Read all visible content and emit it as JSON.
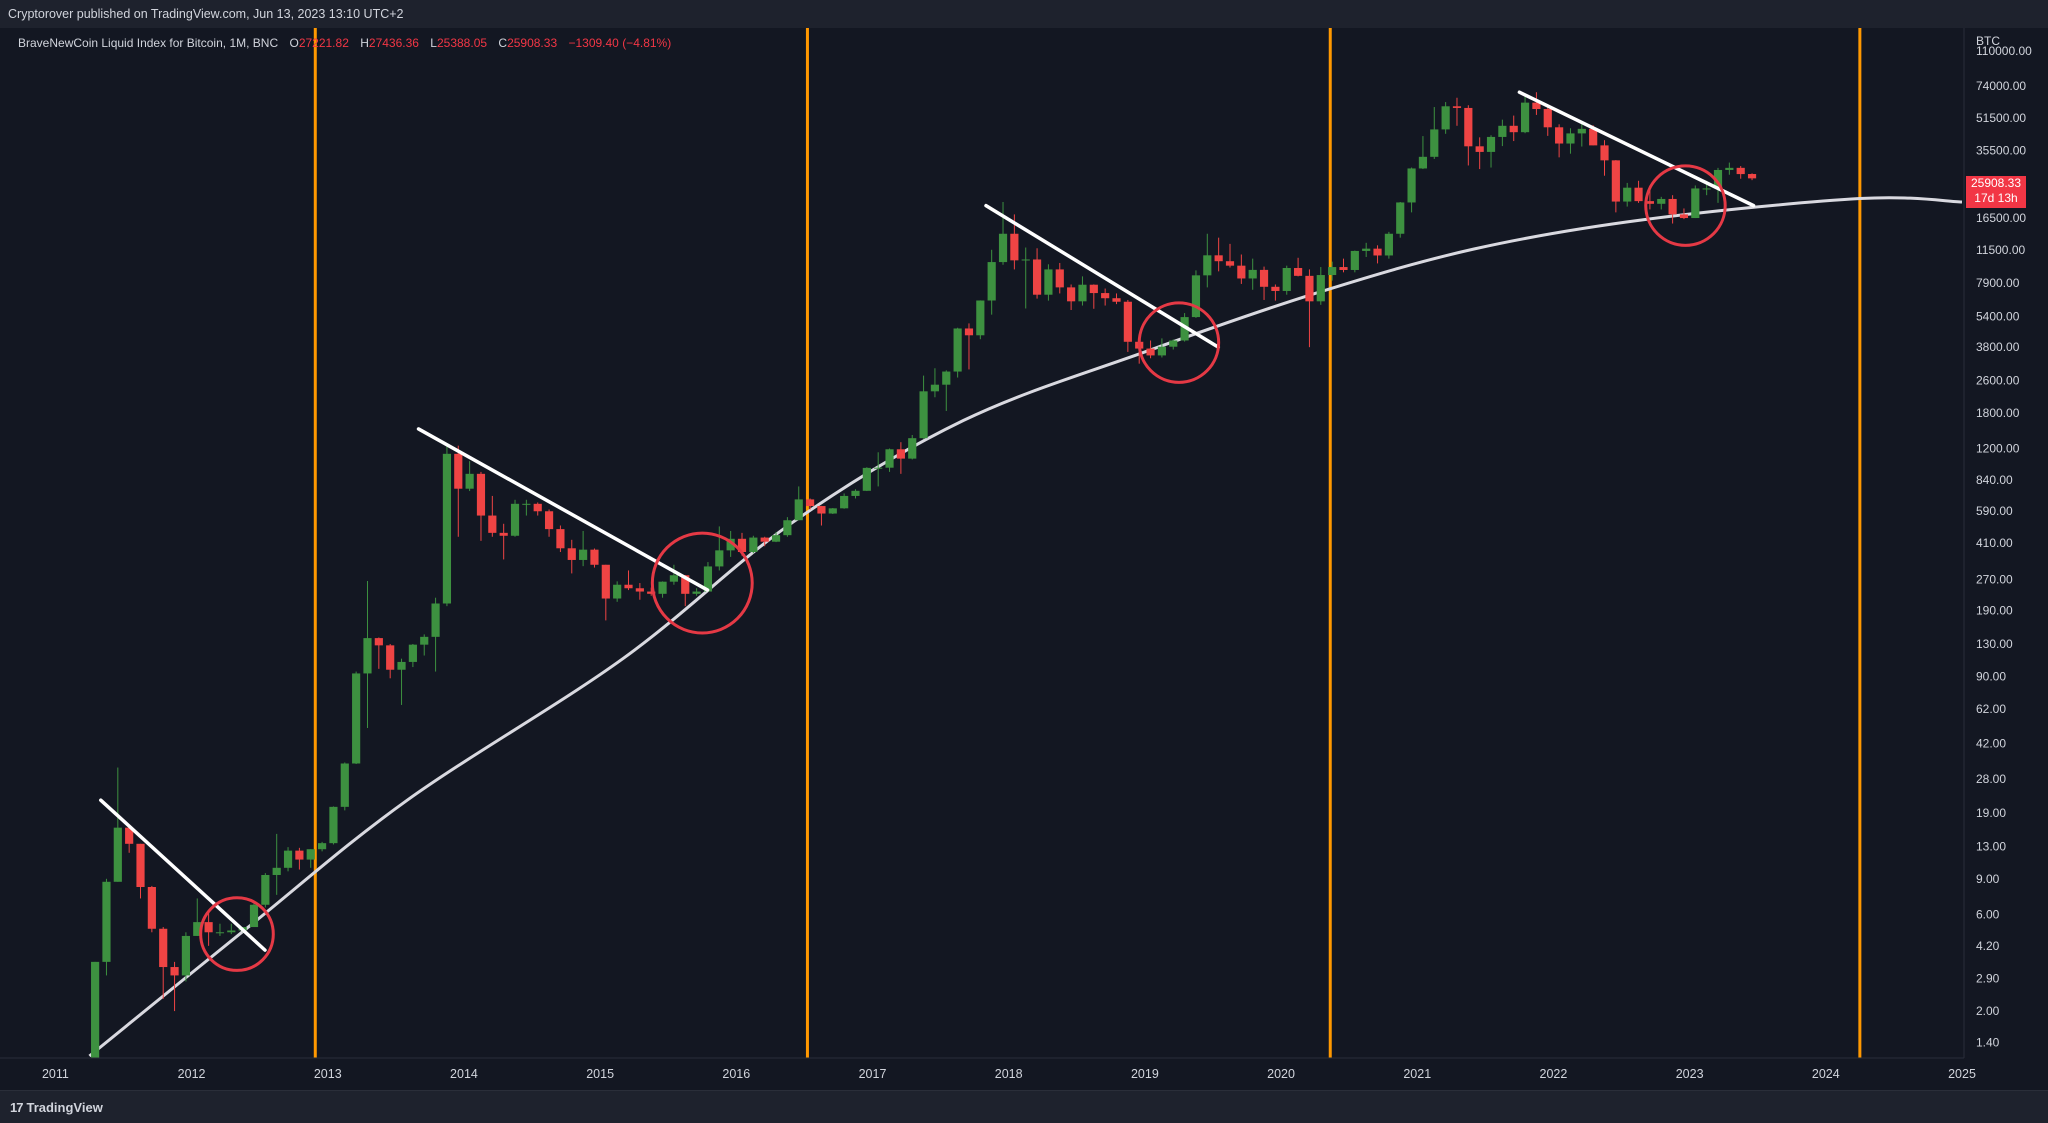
{
  "header": {
    "published": "Cryptorover published on TradingView.com, Jun 13, 2023 13:10 UTC+2"
  },
  "legend": {
    "symbol": "BraveNewCoin Liquid Index for Bitcoin, 1M, BNC",
    "open_label": "O",
    "open": "27221.82",
    "high_label": "H",
    "high": "27436.36",
    "low_label": "L",
    "low": "25388.05",
    "close_label": "C",
    "close": "25908.33",
    "change": "−1309.40 (−4.81%)"
  },
  "price_axis": {
    "currency": "BTC",
    "last_price": "25908.33",
    "countdown": "17d 13h"
  },
  "footer": {
    "brand": "TradingView",
    "mark": "17"
  },
  "colors": {
    "background": "#131722",
    "up": "#26a69a",
    "candle_up": "#3d9140",
    "candle_down": "#ef4444",
    "halving_line": "#ff9800",
    "trendline": "#ffffff",
    "curve": "#d9d9e0",
    "circle": "#e53945"
  },
  "chart_data": {
    "type": "candlestick",
    "interval": "1M",
    "y_scale": "log",
    "ylim": [
      1.2,
      140000
    ],
    "xlim": [
      "2010-09",
      "2025-01"
    ],
    "y_ticks": [
      "110000.00",
      "74000.00",
      "51500.00",
      "35500.00",
      "16500.00",
      "11500.00",
      "7900.00",
      "5400.00",
      "3800.00",
      "2600.00",
      "1800.00",
      "1200.00",
      "840.00",
      "590.00",
      "410.00",
      "270.00",
      "190.00",
      "130.00",
      "90.00",
      "62.00",
      "42.00",
      "28.00",
      "19.00",
      "13.00",
      "9.00",
      "6.00",
      "4.20",
      "2.90",
      "2.00",
      "1.40"
    ],
    "x_ticks": [
      "2011",
      "2012",
      "2013",
      "2014",
      "2015",
      "2016",
      "2017",
      "2018",
      "2019",
      "2020",
      "2021",
      "2022",
      "2023",
      "2024",
      "2025"
    ],
    "halving_lines": [
      "2012-11-28",
      "2016-07-09",
      "2020-05-11",
      "2024-04-01"
    ],
    "trendlines": [
      {
        "from": [
          "2011-05-01",
          22.0
        ],
        "to": [
          "2012-07-15",
          4.0
        ]
      },
      {
        "from": [
          "2013-09-01",
          1500
        ],
        "to": [
          "2015-10-15",
          240
        ]
      },
      {
        "from": [
          "2017-11-01",
          19000
        ],
        "to": [
          "2019-07-15",
          3800
        ]
      },
      {
        "from": [
          "2021-10-01",
          69000
        ],
        "to": [
          "2023-06-20",
          19000
        ]
      }
    ],
    "circles": [
      {
        "center": [
          "2012-05-01",
          4.8
        ],
        "radius_months": 3.2
      },
      {
        "center": [
          "2015-10-01",
          260
        ],
        "radius_months": 4.4
      },
      {
        "center": [
          "2019-04-01",
          4000
        ],
        "radius_months": 3.5
      },
      {
        "center": [
          "2022-12-20",
          19000
        ],
        "radius_months": 3.5
      }
    ],
    "curve": [
      [
        "2011-04-01",
        1.2
      ],
      [
        "2012-06-01",
        5.2
      ],
      [
        "2013-08-01",
        22
      ],
      [
        "2015-03-01",
        110
      ],
      [
        "2016-06-01",
        520
      ],
      [
        "2017-09-01",
        1650
      ],
      [
        "2019-01-01",
        3600
      ],
      [
        "2020-04-01",
        7000
      ],
      [
        "2021-06-01",
        11600
      ],
      [
        "2022-09-01",
        16200
      ],
      [
        "2024-04-01",
        20600
      ],
      [
        "2025-01-01",
        19800
      ]
    ],
    "candles": [
      [
        "2011-04",
        0.86,
        3.5,
        0.68,
        3.5
      ],
      [
        "2011-05",
        3.5,
        9.0,
        3.0,
        8.7
      ],
      [
        "2011-06",
        8.7,
        31.9,
        8.7,
        16.1
      ],
      [
        "2011-07",
        16.1,
        16.6,
        12.1,
        13.4
      ],
      [
        "2011-08",
        13.4,
        13.4,
        7.2,
        8.2
      ],
      [
        "2011-09",
        8.2,
        8.3,
        4.9,
        5.1
      ],
      [
        "2011-10",
        5.1,
        5.2,
        2.3,
        3.3
      ],
      [
        "2011-11",
        3.3,
        3.5,
        2.0,
        3.0
      ],
      [
        "2011-12",
        3.0,
        4.9,
        2.8,
        4.7
      ],
      [
        "2012-01",
        4.7,
        7.2,
        4.7,
        5.5
      ],
      [
        "2012-02",
        5.5,
        6.1,
        4.2,
        4.9
      ],
      [
        "2012-03",
        4.9,
        5.4,
        4.7,
        4.9
      ],
      [
        "2012-04",
        4.9,
        5.4,
        4.8,
        5.0
      ],
      [
        "2012-05",
        5.0,
        5.2,
        4.9,
        5.2
      ],
      [
        "2012-06",
        5.2,
        6.8,
        5.2,
        6.7
      ],
      [
        "2012-07",
        6.7,
        9.6,
        6.5,
        9.4
      ],
      [
        "2012-08",
        9.4,
        15.0,
        7.5,
        10.2
      ],
      [
        "2012-09",
        10.2,
        12.9,
        9.8,
        12.4
      ],
      [
        "2012-10",
        12.4,
        12.8,
        10.0,
        11.2
      ],
      [
        "2012-11",
        11.2,
        12.6,
        10.2,
        12.6
      ],
      [
        "2012-12",
        12.6,
        13.7,
        12.3,
        13.5
      ],
      [
        "2013-01",
        13.5,
        20.5,
        13.3,
        20.4
      ],
      [
        "2013-02",
        20.4,
        33.8,
        19.6,
        33.4
      ],
      [
        "2013-03",
        33.4,
        95.0,
        33.2,
        93.0
      ],
      [
        "2013-04",
        93.0,
        266.0,
        50.0,
        139.0
      ],
      [
        "2013-05",
        139.0,
        140.0,
        98.0,
        128.0
      ],
      [
        "2013-06",
        128.0,
        130.0,
        88.0,
        97.0
      ],
      [
        "2013-07",
        97.0,
        110.0,
        65.0,
        106.0
      ],
      [
        "2013-08",
        106.0,
        130.0,
        100.0,
        129.0
      ],
      [
        "2013-09",
        129.0,
        145.0,
        114.0,
        141.0
      ],
      [
        "2013-10",
        141.0,
        220.0,
        95.0,
        206.0
      ],
      [
        "2013-11",
        206.0,
        1240.0,
        200.0,
        1130.0
      ],
      [
        "2013-12",
        1130.0,
        1240.0,
        440.0,
        760.0
      ],
      [
        "2014-01",
        760.0,
        1040.0,
        740.0,
        900.0
      ],
      [
        "2014-02",
        900.0,
        920.0,
        420.0,
        560.0
      ],
      [
        "2014-03",
        560.0,
        700.0,
        440.0,
        460.0
      ],
      [
        "2014-04",
        460.0,
        510.0,
        340.0,
        445.0
      ],
      [
        "2014-05",
        445.0,
        670.0,
        440.0,
        640.0
      ],
      [
        "2014-06",
        640.0,
        670.0,
        560.0,
        640.0
      ],
      [
        "2014-07",
        640.0,
        650.0,
        560.0,
        588.0
      ],
      [
        "2014-08",
        588.0,
        600.0,
        440.0,
        480.0
      ],
      [
        "2014-09",
        480.0,
        500.0,
        370.0,
        386.0
      ],
      [
        "2014-10",
        386.0,
        425.0,
        290.0,
        338.0
      ],
      [
        "2014-11",
        338.0,
        470.0,
        315.0,
        380.0
      ],
      [
        "2014-12",
        380.0,
        385.0,
        310.0,
        320.0
      ],
      [
        "2015-01",
        320.0,
        320.0,
        170.0,
        218.0
      ],
      [
        "2015-02",
        218.0,
        265.0,
        210.0,
        255.0
      ],
      [
        "2015-03",
        255.0,
        300.0,
        240.0,
        245.0
      ],
      [
        "2015-04",
        245.0,
        260.0,
        215.0,
        236.0
      ],
      [
        "2015-05",
        236.0,
        247.0,
        225.0,
        230.0
      ],
      [
        "2015-06",
        230.0,
        265.0,
        220.0,
        264.0
      ],
      [
        "2015-07",
        264.0,
        320.0,
        255.0,
        284.0
      ],
      [
        "2015-08",
        284.0,
        285.0,
        200.0,
        230.0
      ],
      [
        "2015-09",
        230.0,
        245.0,
        225.0,
        236.0
      ],
      [
        "2015-10",
        236.0,
        330.0,
        235.0,
        314.0
      ],
      [
        "2015-11",
        314.0,
        495.0,
        300.0,
        377.0
      ],
      [
        "2015-12",
        377.0,
        470.0,
        350.0,
        430.0
      ],
      [
        "2016-01",
        430.0,
        460.0,
        355.0,
        370.0
      ],
      [
        "2016-02",
        370.0,
        445.0,
        365.0,
        436.0
      ],
      [
        "2016-03",
        436.0,
        440.0,
        395.0,
        416.0
      ],
      [
        "2016-04",
        416.0,
        465.0,
        414.0,
        448.0
      ],
      [
        "2016-05",
        448.0,
        550.0,
        440.0,
        531.0
      ],
      [
        "2016-06",
        531.0,
        780.0,
        530.0,
        673.0
      ],
      [
        "2016-07",
        673.0,
        680.0,
        600.0,
        624.0
      ],
      [
        "2016-08",
        624.0,
        625.0,
        500.0,
        573.0
      ],
      [
        "2016-09",
        573.0,
        610.0,
        570.0,
        608.0
      ],
      [
        "2016-10",
        608.0,
        720.0,
        605.0,
        700.0
      ],
      [
        "2016-11",
        700.0,
        755.0,
        680.0,
        742.0
      ],
      [
        "2016-12",
        742.0,
        970.0,
        740.0,
        963.0
      ],
      [
        "2017-01",
        963.0,
        1150.0,
        780.0,
        965.0
      ],
      [
        "2017-02",
        965.0,
        1200.0,
        920.0,
        1190.0
      ],
      [
        "2017-03",
        1190.0,
        1290.0,
        900.0,
        1070.0
      ],
      [
        "2017-04",
        1070.0,
        1400.0,
        1060.0,
        1350.0
      ],
      [
        "2017-05",
        1350.0,
        2750.0,
        1340.0,
        2300.0
      ],
      [
        "2017-06",
        2300.0,
        2990.0,
        2150.0,
        2480.0
      ],
      [
        "2017-07",
        2480.0,
        2920.0,
        1840.0,
        2880.0
      ],
      [
        "2017-08",
        2880.0,
        4740.0,
        2690.0,
        4700.0
      ],
      [
        "2017-09",
        4700.0,
        4980.0,
        2950.0,
        4350.0
      ],
      [
        "2017-10",
        4350.0,
        6470.0,
        4160.0,
        6460.0
      ],
      [
        "2017-11",
        6460.0,
        11500.0,
        5500.0,
        10000.0
      ],
      [
        "2017-12",
        10000.0,
        19800.0,
        9700.0,
        13800.0
      ],
      [
        "2018-01",
        13800.0,
        17200.0,
        9200.0,
        10200.0
      ],
      [
        "2018-02",
        10200.0,
        11800.0,
        5900.0,
        10300.0
      ],
      [
        "2018-03",
        10300.0,
        11700.0,
        6600.0,
        6900.0
      ],
      [
        "2018-04",
        6900.0,
        9750.0,
        6450.0,
        9200.0
      ],
      [
        "2018-05",
        9200.0,
        9900.0,
        7000.0,
        7500.0
      ],
      [
        "2018-06",
        7500.0,
        7750.0,
        5800.0,
        6400.0
      ],
      [
        "2018-07",
        6400.0,
        8500.0,
        6100.0,
        7730.0
      ],
      [
        "2018-08",
        7730.0,
        7760.0,
        5880.0,
        7030.0
      ],
      [
        "2018-09",
        7030.0,
        7400.0,
        6100.0,
        6630.0
      ],
      [
        "2018-10",
        6630.0,
        7000.0,
        6200.0,
        6370.0
      ],
      [
        "2018-11",
        6370.0,
        6500.0,
        3600.0,
        4040.0
      ],
      [
        "2018-12",
        4040.0,
        4300.0,
        3150.0,
        3740.0
      ],
      [
        "2019-01",
        3740.0,
        4100.0,
        3350.0,
        3460.0
      ],
      [
        "2019-02",
        3460.0,
        4200.0,
        3380.0,
        3820.0
      ],
      [
        "2019-03",
        3820.0,
        4150.0,
        3700.0,
        4100.0
      ],
      [
        "2019-04",
        4100.0,
        5600.0,
        4050.0,
        5350.0
      ],
      [
        "2019-05",
        5350.0,
        9100.0,
        5300.0,
        8600.0
      ],
      [
        "2019-06",
        8600.0,
        13800.0,
        7500.0,
        10800.0
      ],
      [
        "2019-07",
        10800.0,
        13200.0,
        9000.0,
        10100.0
      ],
      [
        "2019-08",
        10100.0,
        12300.0,
        9400.0,
        9600.0
      ],
      [
        "2019-09",
        9600.0,
        10900.0,
        7800.0,
        8300.0
      ],
      [
        "2019-10",
        8300.0,
        10400.0,
        7300.0,
        9150.0
      ],
      [
        "2019-11",
        9150.0,
        9500.0,
        6500.0,
        7550.0
      ],
      [
        "2019-12",
        7550.0,
        7750.0,
        6450.0,
        7200.0
      ],
      [
        "2020-01",
        7200.0,
        9600.0,
        6900.0,
        9350.0
      ],
      [
        "2020-02",
        9350.0,
        10500.0,
        8500.0,
        8550.0
      ],
      [
        "2020-03",
        8550.0,
        9200.0,
        3800.0,
        6400.0
      ],
      [
        "2020-04",
        6400.0,
        9450.0,
        6150.0,
        8630.0
      ],
      [
        "2020-05",
        8630.0,
        10050.0,
        8100.0,
        9450.0
      ],
      [
        "2020-06",
        9450.0,
        10400.0,
        8900.0,
        9140.0
      ],
      [
        "2020-07",
        9140.0,
        11400.0,
        8900.0,
        11350.0
      ],
      [
        "2020-08",
        11350.0,
        12450.0,
        10600.0,
        11650.0
      ],
      [
        "2020-09",
        11650.0,
        12100.0,
        9850.0,
        10780.0
      ],
      [
        "2020-10",
        10780.0,
        14100.0,
        10400.0,
        13800.0
      ],
      [
        "2020-11",
        13800.0,
        19800.0,
        13200.0,
        19700.0
      ],
      [
        "2020-12",
        19700.0,
        29300.0,
        17600.0,
        29000.0
      ],
      [
        "2021-01",
        29000.0,
        41900.0,
        28800.0,
        33100.0
      ],
      [
        "2021-02",
        33100.0,
        58300.0,
        32300.0,
        45200.0
      ],
      [
        "2021-03",
        45200.0,
        61700.0,
        43000.0,
        58800.0
      ],
      [
        "2021-04",
        58800.0,
        64800.0,
        47100.0,
        57700.0
      ],
      [
        "2021-05",
        57700.0,
        59500.0,
        30000.0,
        37300.0
      ],
      [
        "2021-06",
        37300.0,
        41300.0,
        28800.0,
        35000.0
      ],
      [
        "2021-07",
        35000.0,
        42300.0,
        29300.0,
        41500.0
      ],
      [
        "2021-08",
        41500.0,
        50500.0,
        37400.0,
        47100.0
      ],
      [
        "2021-09",
        47100.0,
        52900.0,
        39600.0,
        43800.0
      ],
      [
        "2021-10",
        43800.0,
        67000.0,
        43300.0,
        61300.0
      ],
      [
        "2021-11",
        61300.0,
        69000.0,
        53300.0,
        57000.0
      ],
      [
        "2021-12",
        57000.0,
        59100.0,
        42000.0,
        46300.0
      ],
      [
        "2022-01",
        46300.0,
        47900.0,
        32900.0,
        38500.0
      ],
      [
        "2022-02",
        38500.0,
        45800.0,
        34300.0,
        43200.0
      ],
      [
        "2022-03",
        43200.0,
        48200.0,
        37200.0,
        45500.0
      ],
      [
        "2022-04",
        45500.0,
        47400.0,
        37700.0,
        37700.0
      ],
      [
        "2022-05",
        37700.0,
        40000.0,
        26700.0,
        31800.0
      ],
      [
        "2022-06",
        31800.0,
        31900.0,
        17600.0,
        19900.0
      ],
      [
        "2022-07",
        19900.0,
        24600.0,
        18800.0,
        23300.0
      ],
      [
        "2022-08",
        23300.0,
        25200.0,
        19600.0,
        20000.0
      ],
      [
        "2022-09",
        20000.0,
        22700.0,
        18200.0,
        19400.0
      ],
      [
        "2022-10",
        19400.0,
        21000.0,
        18200.0,
        20500.0
      ],
      [
        "2022-11",
        20500.0,
        21400.0,
        15500.0,
        17200.0
      ],
      [
        "2022-12",
        17200.0,
        18400.0,
        16300.0,
        16500.0
      ],
      [
        "2023-01",
        16500.0,
        23900.0,
        16500.0,
        23100.0
      ],
      [
        "2023-02",
        23100.0,
        25200.0,
        21400.0,
        23100.0
      ],
      [
        "2023-03",
        23100.0,
        29200.0,
        19600.0,
        28500.0
      ],
      [
        "2023-04",
        28500.0,
        31000.0,
        27000.0,
        29200.0
      ],
      [
        "2023-05",
        29200.0,
        29800.0,
        25800.0,
        27200.0
      ],
      [
        "2023-06",
        27221.82,
        27436.36,
        25388.05,
        25908.33
      ]
    ]
  }
}
